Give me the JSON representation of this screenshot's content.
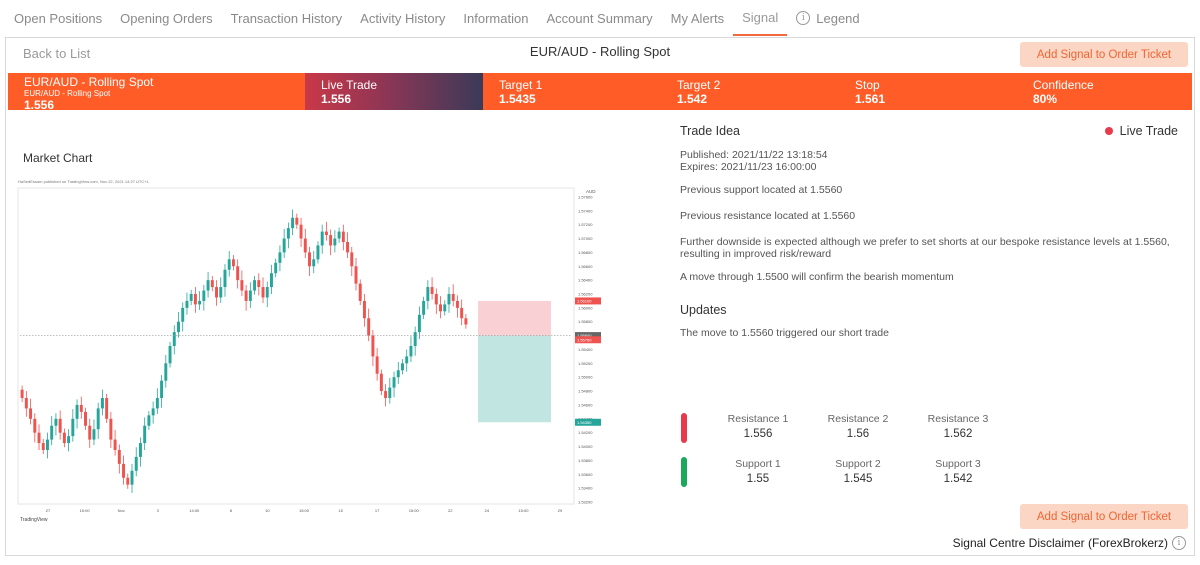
{
  "tabs": [
    {
      "label": "Open Positions"
    },
    {
      "label": "Opening Orders"
    },
    {
      "label": "Transaction History"
    },
    {
      "label": "Activity History"
    },
    {
      "label": "Information"
    },
    {
      "label": "Account Summary"
    },
    {
      "label": "My Alerts"
    },
    {
      "label": "Signal"
    },
    {
      "label": "Legend",
      "icon": "info-icon"
    }
  ],
  "active_tab": "Signal",
  "topbar": {
    "back_label": "Back to List",
    "title": "EUR/AUD - Rolling Spot",
    "add_button_label": "Add Signal to Order Ticket"
  },
  "signal_bar": {
    "pair_label": "EUR/AUD - Rolling Spot",
    "pair_sub": "EUR/AUD - Rolling Spot",
    "pair_value": "1.556",
    "live_label": "Live Trade",
    "live_value": "1.556",
    "target1_label": "Target 1",
    "target1_value": "1.5435",
    "target2_label": "Target 2",
    "target2_value": "1.542",
    "stop_label": "Stop",
    "stop_value": "1.561",
    "confidence_label": "Confidence",
    "confidence_value": "80%"
  },
  "colors": {
    "brand": "#ff5c28",
    "resistance": "#e83a4a",
    "support": "#1ca85b",
    "up_candle": "#26a69a",
    "down_candle": "#ef5350"
  },
  "chart": {
    "title": "Market Chart",
    "watermark": "HaSedEssam published on TradingView.com, Nov 22, 2021 14:27 UTC+1",
    "currency": "AUD",
    "brand": "TradingView",
    "y_ticks": [
      "1.57600",
      "1.57400",
      "1.57200",
      "1.57000",
      "1.56800",
      "1.56600",
      "1.56400",
      "1.56200",
      "1.56000",
      "1.55800",
      "1.55600",
      "1.55400",
      "1.55200",
      "1.55000",
      "1.54800",
      "1.54600",
      "1.54400",
      "1.54200",
      "1.54000",
      "1.53800",
      "1.53600",
      "1.53400",
      "1.53200"
    ],
    "x_ticks": [
      "27",
      "15:00",
      "Nov",
      "3",
      "14:00",
      "8",
      "10",
      "15:00",
      "15",
      "17",
      "15:00",
      "22",
      "24",
      "15:00",
      "29"
    ],
    "price_labels": {
      "stop": "1.56100",
      "entry": "1.55600",
      "current": "1.55760",
      "target": "1.54350"
    }
  },
  "trade_idea": {
    "heading": "Trade Idea",
    "status": "Live Trade",
    "published": "Published: 2021/11/22 13:18:54",
    "expires": "Expires: 2021/11/23 16:00:00",
    "p1": "Previous support located at 1.5560",
    "p2": "Previous resistance located at 1.5560",
    "p3": "Further downside is expected although we prefer to set shorts at our bespoke resistance levels at 1.5560, resulting in improved risk/reward",
    "p4": "A move through 1.5500 will confirm the bearish momentum",
    "updates_heading": "Updates",
    "update1": "The move to 1.5560 triggered our short trade"
  },
  "levels": {
    "resistance": [
      {
        "name": "Resistance 1",
        "value": "1.556"
      },
      {
        "name": "Resistance 2",
        "value": "1.56"
      },
      {
        "name": "Resistance 3",
        "value": "1.562"
      }
    ],
    "support": [
      {
        "name": "Support 1",
        "value": "1.55"
      },
      {
        "name": "Support 2",
        "value": "1.545"
      },
      {
        "name": "Support 3",
        "value": "1.542"
      }
    ]
  },
  "footer": {
    "add_button_label": "Add Signal to Order Ticket",
    "disclaimer": "Signal Centre Disclaimer (ForexBrokerz)"
  },
  "chart_data": {
    "type": "candlestick",
    "symbol": "EUR/AUD",
    "ylim": [
      1.532,
      1.577
    ],
    "grid": false,
    "close_series": [
      1.547,
      1.5455,
      1.544,
      1.542,
      1.5405,
      1.5395,
      1.541,
      1.543,
      1.544,
      1.542,
      1.5405,
      1.5415,
      1.544,
      1.546,
      1.545,
      1.543,
      1.541,
      1.5425,
      1.5455,
      1.547,
      1.544,
      1.541,
      1.5395,
      1.5375,
      1.5355,
      1.5345,
      1.5365,
      1.5385,
      1.5405,
      1.543,
      1.5445,
      1.5455,
      1.547,
      1.5495,
      1.552,
      1.5545,
      1.5565,
      1.558,
      1.56,
      1.561,
      1.562,
      1.5605,
      1.561,
      1.5625,
      1.564,
      1.563,
      1.5615,
      1.563,
      1.5655,
      1.567,
      1.566,
      1.564,
      1.5625,
      1.561,
      1.5625,
      1.564,
      1.563,
      1.5615,
      1.563,
      1.565,
      1.5665,
      1.568,
      1.57,
      1.5715,
      1.573,
      1.572,
      1.57,
      1.568,
      1.566,
      1.567,
      1.569,
      1.571,
      1.5705,
      1.569,
      1.57,
      1.571,
      1.5695,
      1.568,
      1.566,
      1.5635,
      1.561,
      1.5585,
      1.556,
      1.553,
      1.5505,
      1.548,
      1.547,
      1.5485,
      1.55,
      1.551,
      1.552,
      1.553,
      1.5545,
      1.5565,
      1.559,
      1.561,
      1.563,
      1.562,
      1.5605,
      1.5595,
      1.5605,
      1.562,
      1.561,
      1.56,
      1.5585,
      1.5576
    ]
  }
}
